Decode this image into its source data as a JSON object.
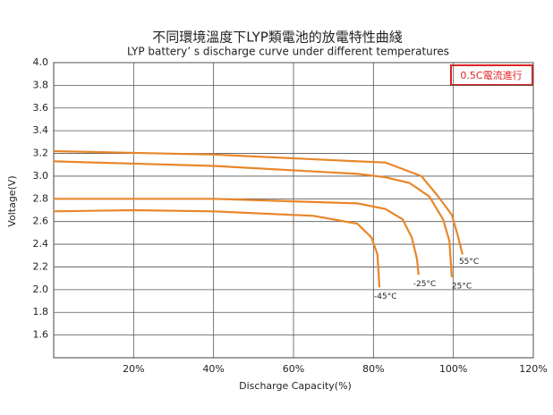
{
  "chart_data": {
    "type": "line",
    "title": "不同環境溫度下LYP類電池的放電特性曲綫",
    "subtitle": "LYP battery’ s discharge curve under different temperatures",
    "note": "0.5C電流進行",
    "x_label": "Discharge Capacity(%)",
    "y_label": "Voltage(V)",
    "xlim": [
      0,
      120
    ],
    "ylim": [
      1.4,
      4.0
    ],
    "xticks": [
      {
        "value": 20,
        "label": "20%"
      },
      {
        "value": 40,
        "label": "40%"
      },
      {
        "value": 60,
        "label": "60%"
      },
      {
        "value": 80,
        "label": "80%"
      },
      {
        "value": 100,
        "label": "100%"
      },
      {
        "value": 120,
        "label": "120%"
      }
    ],
    "yticks": [
      1.6,
      1.8,
      {
        "value": 2,
        "label": "2.0"
      },
      2.2,
      2.4,
      2.6,
      2.8,
      {
        "value": 3,
        "label": "3.0"
      },
      3.2,
      3.4,
      3.6,
      3.8,
      {
        "value": 4,
        "label": "4.0"
      }
    ],
    "grid": true,
    "series": [
      {
        "name": "55°C",
        "color": "#e8862a",
        "x": [
          0,
          40,
          76,
          83,
          92,
          96,
          99.6,
          101,
          102.3
        ],
        "values": [
          3.22,
          3.19,
          3.13,
          3.12,
          3.0,
          2.83,
          2.66,
          2.49,
          2.31
        ]
      },
      {
        "name": "25°C",
        "color": "#e8862a",
        "x": [
          0,
          40,
          76,
          83,
          89,
          94,
          97.4,
          99,
          99.6
        ],
        "values": [
          3.13,
          3.09,
          3.02,
          2.99,
          2.94,
          2.82,
          2.62,
          2.43,
          2.11
        ]
      },
      {
        "name": "-25°C",
        "color": "#e8862a",
        "x": [
          0,
          40,
          76,
          83,
          87.3,
          89.6,
          90.9,
          91.3
        ],
        "values": [
          2.8,
          2.8,
          2.76,
          2.71,
          2.62,
          2.46,
          2.27,
          2.13
        ]
      },
      {
        "name": "-45°C",
        "color": "#e8862a",
        "x": [
          0,
          20,
          40,
          65,
          76,
          79.5,
          81,
          81.5
        ],
        "values": [
          2.69,
          2.7,
          2.69,
          2.65,
          2.58,
          2.46,
          2.31,
          2.02
        ]
      }
    ]
  }
}
